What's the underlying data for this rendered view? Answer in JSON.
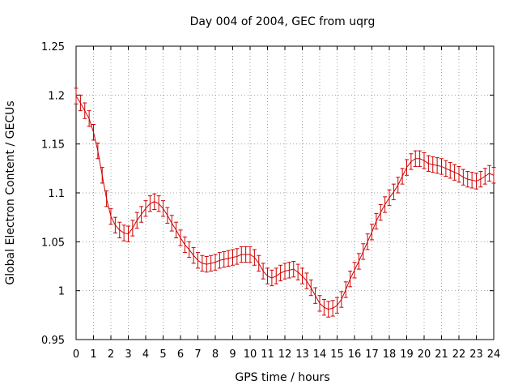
{
  "chart_data": {
    "type": "line",
    "title": "Day 004 of 2004, GEC from uqrg",
    "xlabel": "GPS time / hours",
    "ylabel": "Global Electron Content / GECUs",
    "xlim": [
      0,
      24
    ],
    "ylim": [
      0.95,
      1.25
    ],
    "x_ticks": [
      "0",
      "1",
      "2",
      "3",
      "4",
      "5",
      "6",
      "7",
      "8",
      "9",
      "10",
      "11",
      "12",
      "13",
      "14",
      "15",
      "16",
      "17",
      "18",
      "19",
      "20",
      "21",
      "22",
      "23",
      "24"
    ],
    "y_ticks": [
      "0.95",
      "1",
      "1.05",
      "1.1",
      "1.15",
      "1.2",
      "1.25"
    ],
    "grid": true,
    "series_color": "#cc0000",
    "error": 0.008,
    "x": [
      0,
      0.25,
      0.5,
      0.75,
      1,
      1.25,
      1.5,
      1.75,
      2,
      2.25,
      2.5,
      2.75,
      3,
      3.25,
      3.5,
      3.75,
      4,
      4.25,
      4.5,
      4.75,
      5,
      5.25,
      5.5,
      5.75,
      6,
      6.25,
      6.5,
      6.75,
      7,
      7.25,
      7.5,
      7.75,
      8,
      8.25,
      8.5,
      8.75,
      9,
      9.25,
      9.5,
      9.75,
      10,
      10.25,
      10.5,
      10.75,
      11,
      11.25,
      11.5,
      11.75,
      12,
      12.25,
      12.5,
      12.75,
      13,
      13.25,
      13.5,
      13.75,
      14,
      14.25,
      14.5,
      14.75,
      15,
      15.25,
      15.5,
      15.75,
      16,
      16.25,
      16.5,
      16.75,
      17,
      17.25,
      17.5,
      17.75,
      18,
      18.25,
      18.5,
      18.75,
      19,
      19.25,
      19.5,
      19.75,
      20,
      20.25,
      20.5,
      20.75,
      21,
      21.25,
      21.5,
      21.75,
      22,
      22.25,
      22.5,
      22.75,
      23,
      23.25,
      23.5,
      23.75,
      24
    ],
    "y": [
      1.199,
      1.192,
      1.184,
      1.176,
      1.162,
      1.143,
      1.118,
      1.094,
      1.076,
      1.067,
      1.062,
      1.059,
      1.058,
      1.064,
      1.072,
      1.078,
      1.084,
      1.089,
      1.091,
      1.089,
      1.084,
      1.077,
      1.069,
      1.062,
      1.054,
      1.047,
      1.042,
      1.036,
      1.031,
      1.028,
      1.027,
      1.028,
      1.029,
      1.031,
      1.032,
      1.033,
      1.034,
      1.035,
      1.037,
      1.037,
      1.037,
      1.034,
      1.028,
      1.02,
      1.015,
      1.013,
      1.015,
      1.018,
      1.02,
      1.021,
      1.022,
      1.019,
      1.015,
      1.01,
      1.003,
      0.995,
      0.987,
      0.983,
      0.981,
      0.982,
      0.985,
      0.991,
      1.001,
      1.012,
      1.021,
      1.03,
      1.04,
      1.05,
      1.06,
      1.071,
      1.08,
      1.088,
      1.095,
      1.101,
      1.108,
      1.117,
      1.126,
      1.132,
      1.135,
      1.135,
      1.133,
      1.13,
      1.129,
      1.128,
      1.127,
      1.125,
      1.123,
      1.121,
      1.119,
      1.116,
      1.114,
      1.113,
      1.112,
      1.114,
      1.117,
      1.12,
      1.118
    ]
  }
}
